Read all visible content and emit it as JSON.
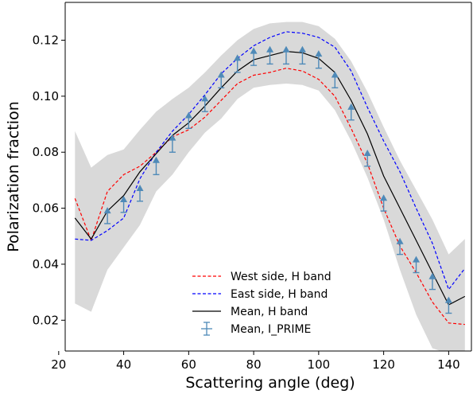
{
  "chart_data": {
    "type": "line",
    "xlabel": "Scattering angle (deg)",
    "ylabel": "Polarization fraction",
    "xlim": [
      22,
      147
    ],
    "ylim": [
      0.009,
      0.1335
    ],
    "xticks": [
      20,
      40,
      60,
      80,
      100,
      120,
      140
    ],
    "xtick_labels": [
      "20",
      "40",
      "60",
      "80",
      "100",
      "120",
      "140"
    ],
    "yticks": [
      0.02,
      0.04,
      0.06,
      0.08,
      0.1,
      0.12
    ],
    "ytick_labels": [
      "0.02",
      "0.04",
      "0.06",
      "0.08",
      "0.10",
      "0.12"
    ],
    "grid": false,
    "legend_position": "lower-center",
    "legend": [
      "West side, H band",
      "East side, H band",
      "Mean, H band",
      "Mean, I_PRIME"
    ],
    "band": {
      "x": [
        25,
        30,
        35,
        40,
        45,
        50,
        55,
        60,
        65,
        70,
        75,
        80,
        85,
        90,
        95,
        100,
        105,
        110,
        115,
        120,
        125,
        130,
        135,
        140,
        145
      ],
      "upper": [
        0.0875,
        0.0745,
        0.079,
        0.081,
        0.088,
        0.0945,
        0.099,
        0.103,
        0.1085,
        0.1145,
        0.12,
        0.124,
        0.126,
        0.1265,
        0.1265,
        0.125,
        0.1205,
        0.1125,
        0.1015,
        0.089,
        0.077,
        0.0665,
        0.056,
        0.0435,
        0.049
      ],
      "lower": [
        0.026,
        0.023,
        0.038,
        0.046,
        0.054,
        0.066,
        0.072,
        0.08,
        0.087,
        0.092,
        0.099,
        0.103,
        0.104,
        0.1045,
        0.104,
        0.102,
        0.095,
        0.084,
        0.071,
        0.056,
        0.038,
        0.022,
        0.01,
        0.008,
        0.008
      ],
      "color": "#d9d9d9"
    },
    "series": [
      {
        "name": "West side, H band",
        "style": "dashed",
        "color": "#ff0000",
        "x": [
          25,
          30,
          35,
          40,
          45,
          50,
          55,
          60,
          65,
          70,
          75,
          80,
          85,
          90,
          95,
          100,
          105,
          110,
          115,
          120,
          125,
          130,
          135,
          140,
          145
        ],
        "y": [
          0.0635,
          0.0485,
          0.066,
          0.072,
          0.075,
          0.08,
          0.0855,
          0.088,
          0.0925,
          0.0985,
          0.1045,
          0.1075,
          0.1085,
          0.11,
          0.109,
          0.106,
          0.1,
          0.0885,
          0.076,
          0.06,
          0.0465,
          0.037,
          0.0265,
          0.019,
          0.0185
        ]
      },
      {
        "name": "East side, H band",
        "style": "dashed",
        "color": "#0000ff",
        "x": [
          25,
          30,
          35,
          40,
          45,
          50,
          55,
          60,
          65,
          70,
          75,
          80,
          85,
          90,
          95,
          100,
          105,
          110,
          115,
          120,
          125,
          130,
          135,
          140,
          145
        ],
        "y": [
          0.049,
          0.0485,
          0.052,
          0.0565,
          0.0705,
          0.08,
          0.0875,
          0.0935,
          0.1005,
          0.108,
          0.1135,
          0.118,
          0.121,
          0.123,
          0.1225,
          0.121,
          0.1175,
          0.109,
          0.096,
          0.084,
          0.073,
          0.06,
          0.0475,
          0.031,
          0.0385
        ]
      },
      {
        "name": "Mean, H band",
        "style": "solid",
        "color": "#000000",
        "x": [
          25,
          30,
          35,
          40,
          45,
          50,
          55,
          60,
          65,
          70,
          75,
          80,
          85,
          90,
          95,
          100,
          105,
          110,
          115,
          120,
          125,
          130,
          135,
          140,
          145
        ],
        "y": [
          0.0565,
          0.049,
          0.059,
          0.0645,
          0.073,
          0.0795,
          0.086,
          0.0905,
          0.0965,
          0.103,
          0.109,
          0.113,
          0.1145,
          0.116,
          0.1155,
          0.1135,
          0.1085,
          0.0985,
          0.0865,
          0.0715,
          0.06,
          0.0485,
          0.037,
          0.0255,
          0.0285
        ]
      },
      {
        "name": "Mean, I_PRIME",
        "style": "lower-limit markers",
        "color": "#4f8ab8",
        "x": [
          35,
          40,
          45,
          50,
          55,
          60,
          65,
          70,
          75,
          80,
          85,
          90,
          95,
          100,
          105,
          110,
          115,
          120,
          125,
          130,
          135,
          140
        ],
        "y": [
          0.059,
          0.063,
          0.067,
          0.077,
          0.085,
          0.093,
          0.099,
          0.1075,
          0.1135,
          0.116,
          0.1165,
          0.1165,
          0.1165,
          0.115,
          0.1075,
          0.096,
          0.0795,
          0.0635,
          0.048,
          0.0415,
          0.0355,
          0.027
        ],
        "yerr": [
          0.0045,
          0.0045,
          0.0045,
          0.005,
          0.005,
          0.0045,
          0.0045,
          0.0045,
          0.005,
          0.005,
          0.005,
          0.005,
          0.005,
          0.005,
          0.0045,
          0.0045,
          0.0045,
          0.0045,
          0.0045,
          0.0045,
          0.0045,
          0.0045
        ]
      }
    ]
  }
}
